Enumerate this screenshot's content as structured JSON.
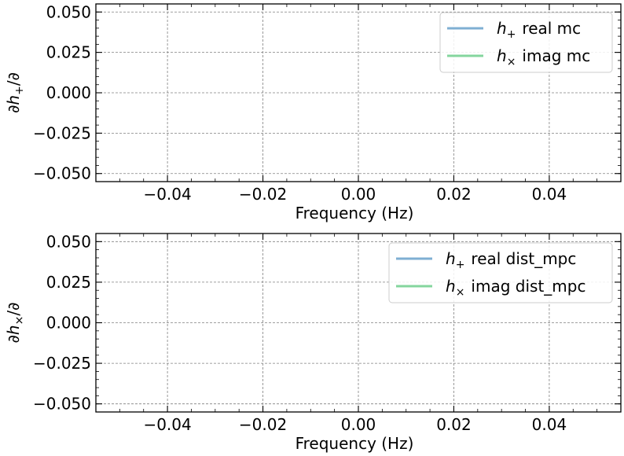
{
  "chart_data": [
    {
      "type": "line",
      "xlabel": "Frequency (Hz)",
      "ylabel_parts": [
        "∂",
        "h",
        "+",
        "/∂"
      ],
      "xlim": [
        -0.055,
        0.055
      ],
      "ylim": [
        -0.055,
        0.055
      ],
      "xticks": [
        -0.04,
        -0.02,
        0.0,
        0.02,
        0.04
      ],
      "yticks": [
        -0.05,
        -0.025,
        0.0,
        0.025,
        0.05
      ],
      "xtick_labels": [
        "−0.04",
        "−0.02",
        "0.00",
        "0.02",
        "0.04"
      ],
      "ytick_labels": [
        "−0.050",
        "−0.025",
        "0.000",
        "0.025",
        "0.050"
      ],
      "grid": true,
      "legend_position": "top-right",
      "series": [
        {
          "name_symbol": "h",
          "name_sub": "+",
          "name_text": "real mc",
          "color": "#7fafd3",
          "x": [],
          "y": []
        },
        {
          "name_symbol": "h",
          "name_sub": "×",
          "name_text": "imag mc",
          "color": "#84d69d",
          "x": [],
          "y": []
        }
      ]
    },
    {
      "type": "line",
      "xlabel": "Frequency (Hz)",
      "ylabel_parts": [
        "∂",
        "h",
        "×",
        "/∂"
      ],
      "xlim": [
        -0.055,
        0.055
      ],
      "ylim": [
        -0.055,
        0.055
      ],
      "xticks": [
        -0.04,
        -0.02,
        0.0,
        0.02,
        0.04
      ],
      "yticks": [
        -0.05,
        -0.025,
        0.0,
        0.025,
        0.05
      ],
      "xtick_labels": [
        "−0.04",
        "−0.02",
        "0.00",
        "0.02",
        "0.04"
      ],
      "ytick_labels": [
        "−0.050",
        "−0.025",
        "0.000",
        "0.025",
        "0.050"
      ],
      "grid": true,
      "legend_position": "top-right",
      "series": [
        {
          "name_symbol": "h",
          "name_sub": "+",
          "name_text": "real dist_mpc",
          "color": "#7fafd3",
          "x": [],
          "y": []
        },
        {
          "name_symbol": "h",
          "name_sub": "×",
          "name_text": "imag dist_mpc",
          "color": "#84d69d",
          "x": [],
          "y": []
        }
      ]
    }
  ]
}
